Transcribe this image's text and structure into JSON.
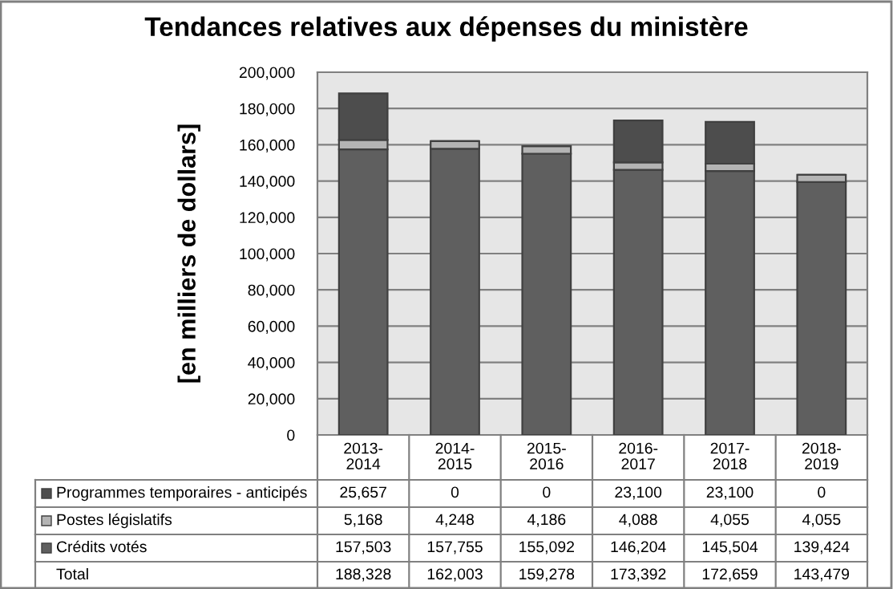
{
  "chart_data": {
    "type": "bar",
    "title": "Tendances relatives aux dépenses du ministère",
    "ylabel": "[en milliers de dollars]",
    "stacked": true,
    "categories": [
      "2013-\n2014",
      "2014-\n2015",
      "2015-\n2016",
      "2016-\n2017",
      "2017-\n2018",
      "2018-\n2019"
    ],
    "series": [
      {
        "name": "Crédits votés",
        "color": "#5f5f5f",
        "values": [
          157503,
          157755,
          155092,
          146204,
          145504,
          139424
        ],
        "value_labels": [
          "157,503",
          "157,755",
          "155,092",
          "146,204",
          "145,504",
          "139,424"
        ]
      },
      {
        "name": "Postes législatifs",
        "color": "#b4b4b4",
        "values": [
          5168,
          4248,
          4186,
          4088,
          4055,
          4055
        ],
        "value_labels": [
          "5,168",
          "4,248",
          "4,186",
          "4,088",
          "4,055",
          "4,055"
        ]
      },
      {
        "name": "Programmes temporaires - anticipés",
        "color": "#4d4d4d",
        "values": [
          25657,
          0,
          0,
          23100,
          23100,
          0
        ],
        "value_labels": [
          "25,657",
          "0",
          "0",
          "23,100",
          "23,100",
          "0"
        ]
      }
    ],
    "annotations": [
      "Total",
      "188,328",
      "162,003",
      "159,278",
      "173,392",
      "172,659",
      "143,479"
    ],
    "ylim": [
      0,
      200000
    ],
    "yticks": [
      {
        "value": 0,
        "label": "0"
      },
      {
        "value": 20000,
        "label": "20,000"
      },
      {
        "value": 40000,
        "label": "40,000"
      },
      {
        "value": 60000,
        "label": "60,000"
      },
      {
        "value": 80000,
        "label": "80,000"
      },
      {
        "value": 100000,
        "label": "100,000"
      },
      {
        "value": 120000,
        "label": "120,000"
      },
      {
        "value": 140000,
        "label": "140,000"
      },
      {
        "value": 160000,
        "label": "160,000"
      },
      {
        "value": 180000,
        "label": "180,000"
      },
      {
        "value": 200000,
        "label": "200,000"
      }
    ],
    "grid": "y",
    "legend": "bottom left"
  }
}
